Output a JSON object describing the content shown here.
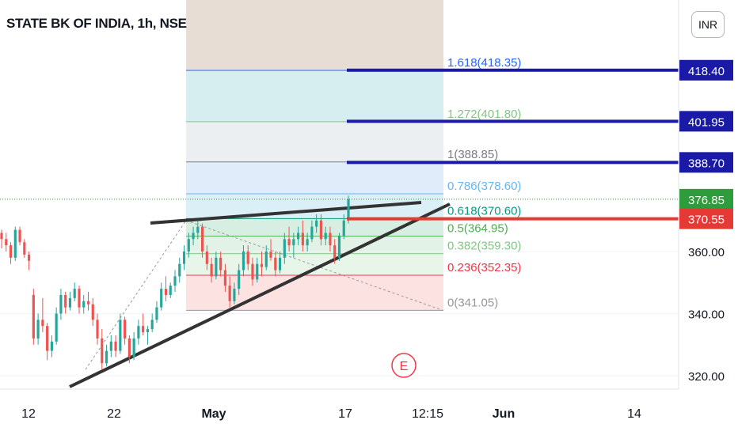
{
  "header": {
    "symbol_title": "STATE BK OF INDIA, 1h, NSE",
    "currency": "INR"
  },
  "colors": {
    "up": "#26a69a",
    "down": "#ef5350",
    "target_line": "#1a1aa6",
    "resistance": "#e53935",
    "current_price": "#2e9c3a",
    "trendline": "#333333"
  },
  "chart_data": {
    "type": "candlestick",
    "title": "STATE BK OF INDIA, 1h, NSE",
    "ylim": [
      315,
      426
    ],
    "y_ticks": [
      {
        "value": 320,
        "label": "320.00"
      },
      {
        "value": 340,
        "label": "340.00"
      },
      {
        "value": 360,
        "label": "360.00"
      }
    ],
    "x_ticks": [
      "12",
      "22",
      "May",
      "17",
      "12:15",
      "Jun",
      "14"
    ],
    "fibonacci": [
      {
        "ratio": "0",
        "price": 341.05,
        "label": "0(341.05)",
        "color": "#9598a1"
      },
      {
        "ratio": "0.236",
        "price": 352.35,
        "label": "0.236(352.35)",
        "color": "#f23645"
      },
      {
        "ratio": "0.382",
        "price": 359.3,
        "label": "0.382(359.30)",
        "color": "#81c784"
      },
      {
        "ratio": "0.5",
        "price": 364.95,
        "label": "0.5(364.95)",
        "color": "#4caf50"
      },
      {
        "ratio": "0.618",
        "price": 370.6,
        "label": "0.618(370.60)",
        "color": "#089981"
      },
      {
        "ratio": "0.786",
        "price": 378.6,
        "label": "0.786(378.60)",
        "color": "#64b5f6"
      },
      {
        "ratio": "1",
        "price": 388.85,
        "label": "1(388.85)",
        "color": "#787b86"
      },
      {
        "ratio": "1.272",
        "price": 401.8,
        "label": "1.272(401.80)",
        "color": "#81c784"
      },
      {
        "ratio": "1.618",
        "price": 418.35,
        "label": "1.618(418.35)",
        "color": "#2962ff"
      }
    ],
    "price_labels": [
      {
        "value": 418.4,
        "label": "418.40",
        "kind": "target"
      },
      {
        "value": 401.95,
        "label": "401.95",
        "kind": "target"
      },
      {
        "value": 388.7,
        "label": "388.70",
        "kind": "target"
      },
      {
        "value": 376.85,
        "label": "376.85",
        "kind": "current"
      },
      {
        "value": 370.55,
        "label": "370.55",
        "kind": "resistance"
      }
    ],
    "earnings_marker": "E",
    "candles": [
      [
        366,
        367,
        361,
        364
      ],
      [
        364,
        366,
        360,
        362
      ],
      [
        362,
        363,
        356,
        358
      ],
      [
        358,
        368,
        357,
        367
      ],
      [
        367,
        368,
        362,
        363
      ],
      [
        363,
        364,
        358,
        359
      ],
      [
        359,
        360,
        354,
        357
      ],
      [
        346,
        348,
        330,
        332
      ],
      [
        332,
        340,
        330,
        338
      ],
      [
        338,
        345,
        334,
        336
      ],
      [
        336,
        337,
        325,
        328
      ],
      [
        328,
        333,
        326,
        331
      ],
      [
        331,
        342,
        330,
        340
      ],
      [
        340,
        348,
        338,
        346
      ],
      [
        346,
        347,
        340,
        342
      ],
      [
        342,
        347,
        341,
        345
      ],
      [
        345,
        350,
        344,
        348
      ],
      [
        348,
        349,
        340,
        342
      ],
      [
        342,
        346,
        340,
        344
      ],
      [
        344,
        347,
        341,
        343
      ],
      [
        343,
        345,
        336,
        338
      ],
      [
        338,
        340,
        330,
        332
      ],
      [
        332,
        335,
        322,
        324
      ],
      [
        324,
        330,
        323,
        328
      ],
      [
        328,
        333,
        326,
        331
      ],
      [
        331,
        333,
        326,
        328
      ],
      [
        328,
        340,
        327,
        338
      ],
      [
        338,
        339,
        330,
        332
      ],
      [
        332,
        333,
        324,
        326
      ],
      [
        326,
        334,
        325,
        332
      ],
      [
        332,
        338,
        330,
        336
      ],
      [
        336,
        340,
        333,
        334
      ],
      [
        334,
        336,
        330,
        335
      ],
      [
        335,
        340,
        334,
        338
      ],
      [
        338,
        344,
        337,
        342
      ],
      [
        342,
        350,
        341,
        348
      ],
      [
        348,
        352,
        344,
        346
      ],
      [
        346,
        350,
        345,
        349
      ],
      [
        349,
        354,
        347,
        352
      ],
      [
        352,
        358,
        350,
        356
      ],
      [
        356,
        362,
        354,
        360
      ],
      [
        360,
        366,
        358,
        364
      ],
      [
        364,
        368,
        362,
        366
      ],
      [
        366,
        370,
        364,
        368
      ],
      [
        368,
        369,
        358,
        360
      ],
      [
        360,
        362,
        354,
        356
      ],
      [
        356,
        358,
        350,
        352
      ],
      [
        352,
        360,
        351,
        358
      ],
      [
        358,
        360,
        352,
        354
      ],
      [
        354,
        356,
        347,
        349
      ],
      [
        349,
        352,
        342,
        344
      ],
      [
        344,
        350,
        343,
        348
      ],
      [
        348,
        356,
        346,
        354
      ],
      [
        354,
        362,
        352,
        360
      ],
      [
        360,
        362,
        354,
        356
      ],
      [
        356,
        358,
        349,
        351
      ],
      [
        351,
        358,
        350,
        356
      ],
      [
        356,
        360,
        352,
        355
      ],
      [
        355,
        362,
        354,
        360
      ],
      [
        360,
        364,
        357,
        358
      ],
      [
        358,
        360,
        352,
        354
      ],
      [
        354,
        360,
        353,
        358
      ],
      [
        358,
        366,
        356,
        364
      ],
      [
        364,
        368,
        360,
        362
      ],
      [
        362,
        366,
        358,
        364
      ],
      [
        364,
        368,
        362,
        366
      ],
      [
        366,
        370,
        360,
        362
      ],
      [
        362,
        366,
        360,
        364
      ],
      [
        364,
        370,
        363,
        368
      ],
      [
        368,
        372,
        366,
        370
      ],
      [
        370,
        372,
        362,
        364
      ],
      [
        364,
        368,
        362,
        366
      ],
      [
        366,
        368,
        360,
        362
      ],
      [
        362,
        364,
        356,
        358
      ],
      [
        358,
        366,
        357,
        365
      ],
      [
        365,
        372,
        364,
        370
      ],
      [
        370,
        378,
        369,
        376.85
      ]
    ]
  }
}
